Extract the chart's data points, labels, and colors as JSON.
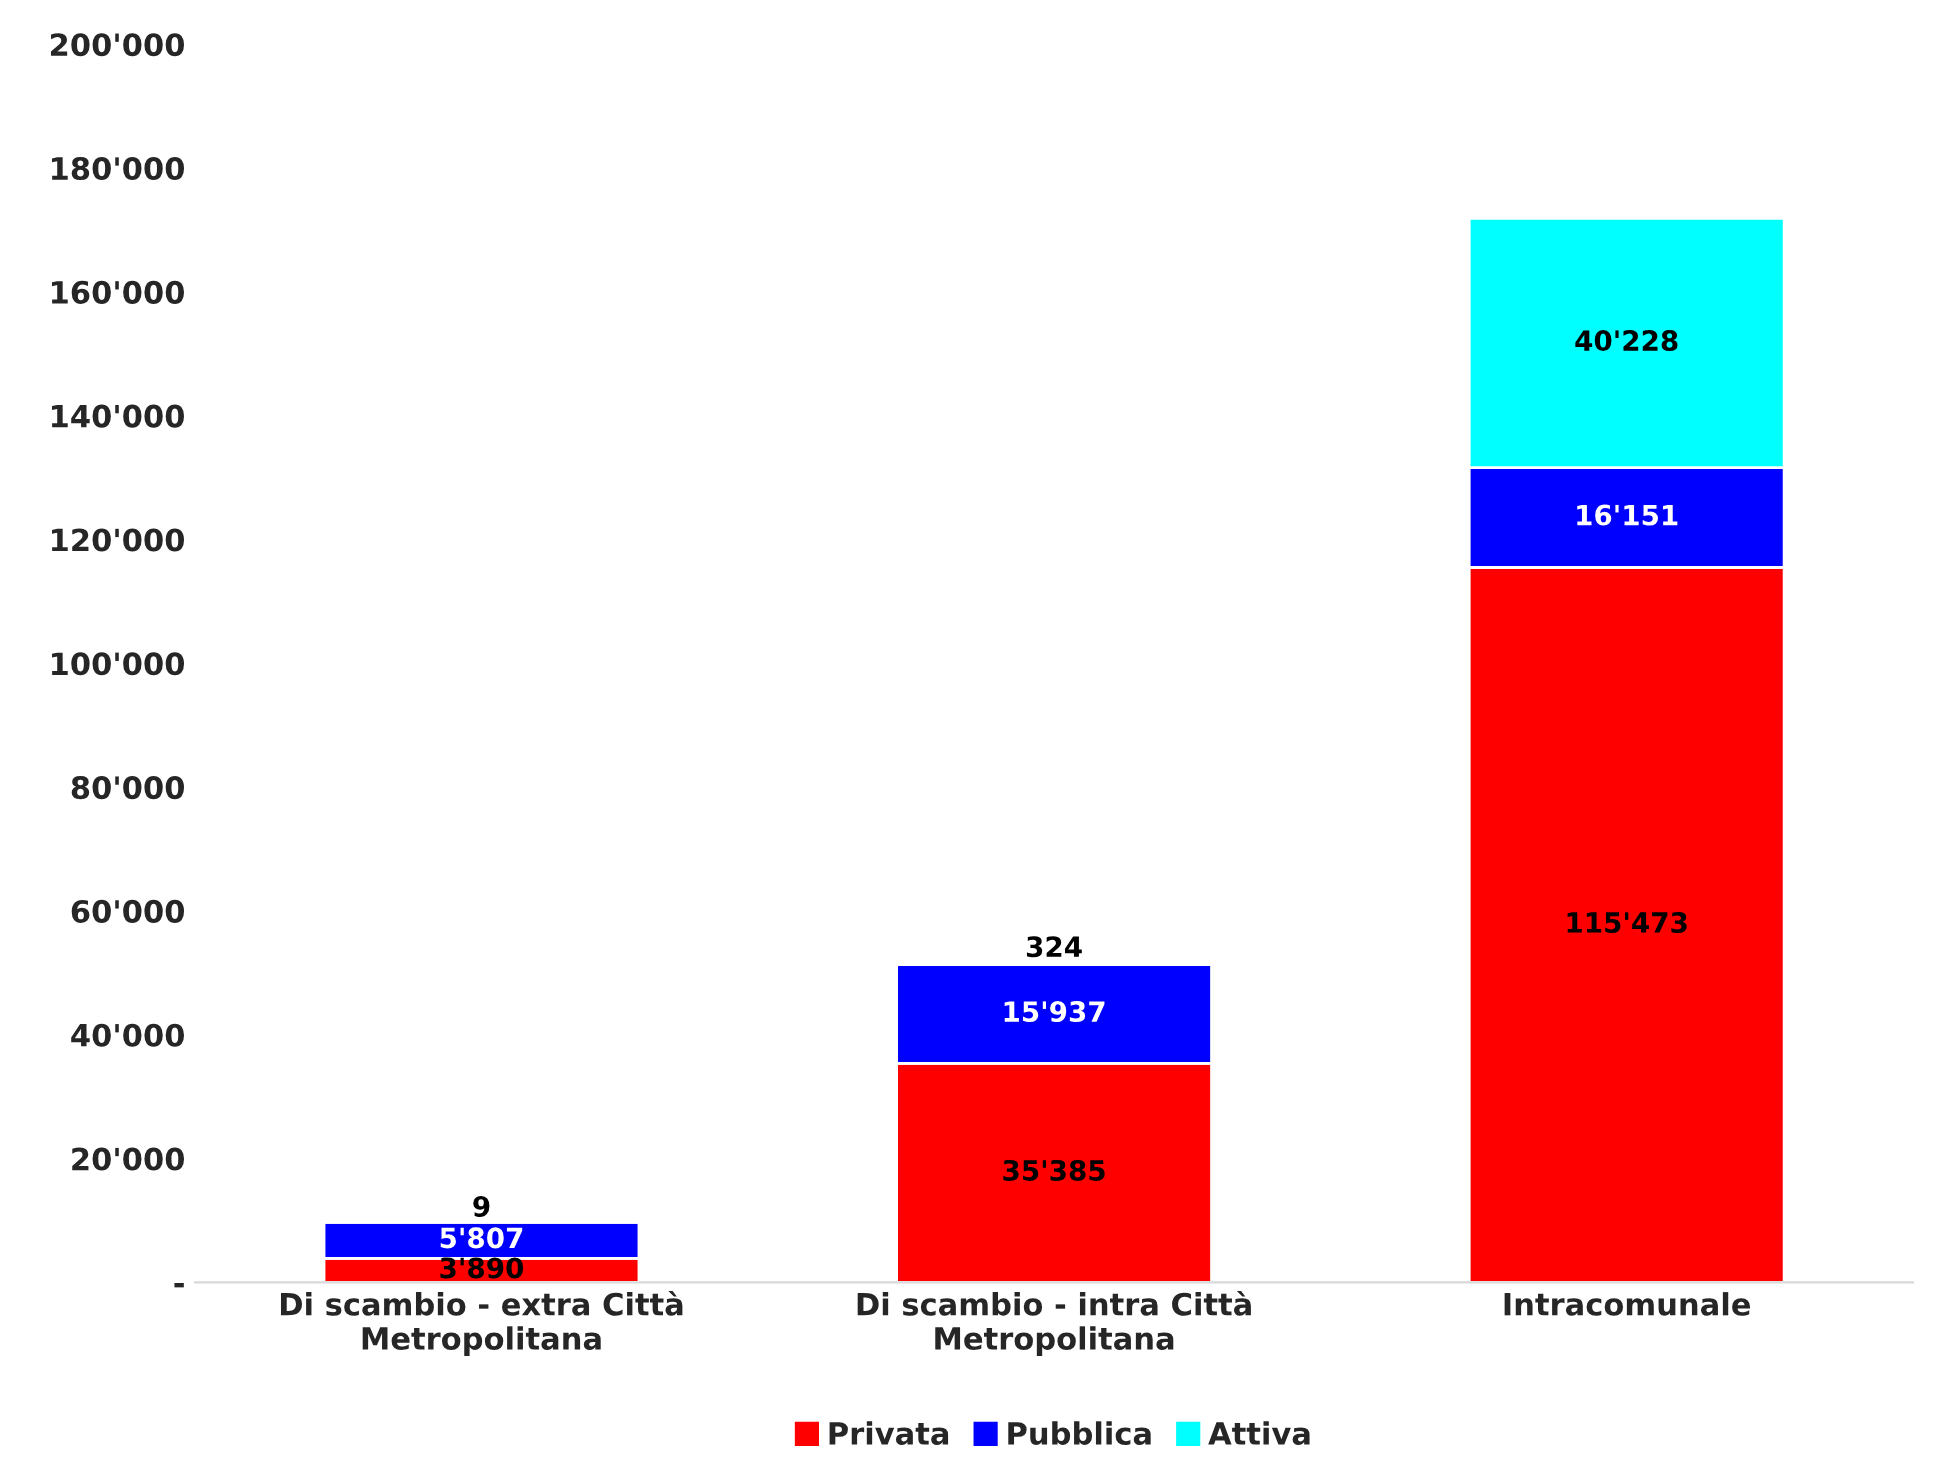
{
  "chart_data": {
    "type": "bar",
    "stacked": true,
    "categories": [
      "Di scambio - extra Città\nMetropolitana",
      "Di scambio - intra Città\nMetropolitana",
      "Intracomunale"
    ],
    "series": [
      {
        "name": "Privata",
        "color": "#ff0000",
        "values": [
          3890,
          35385,
          115473
        ],
        "value_labels": [
          "3'890",
          "35'385",
          "115'473"
        ]
      },
      {
        "name": "Pubblica",
        "color": "#0000ff",
        "values": [
          5807,
          15937,
          16151
        ],
        "value_labels": [
          "5'807",
          "15'937",
          "16'151"
        ]
      },
      {
        "name": "Attiva",
        "color": "#00ffff",
        "values": [
          9,
          324,
          40228
        ],
        "value_labels": [
          "9",
          "324",
          "40'228"
        ]
      }
    ],
    "ylim": [
      0,
      200000
    ],
    "yticks": [
      {
        "value": 0,
        "label": "-"
      },
      {
        "value": 20000,
        "label": "20'000"
      },
      {
        "value": 40000,
        "label": "40'000"
      },
      {
        "value": 60000,
        "label": "60'000"
      },
      {
        "value": 80000,
        "label": "80'000"
      },
      {
        "value": 100000,
        "label": "100'000"
      },
      {
        "value": 120000,
        "label": "120'000"
      },
      {
        "value": 140000,
        "label": "140'000"
      },
      {
        "value": 160000,
        "label": "160'000"
      },
      {
        "value": 180000,
        "label": "180'000"
      },
      {
        "value": 200000,
        "label": "200'000"
      }
    ],
    "grid": false,
    "legend": "bottom"
  }
}
